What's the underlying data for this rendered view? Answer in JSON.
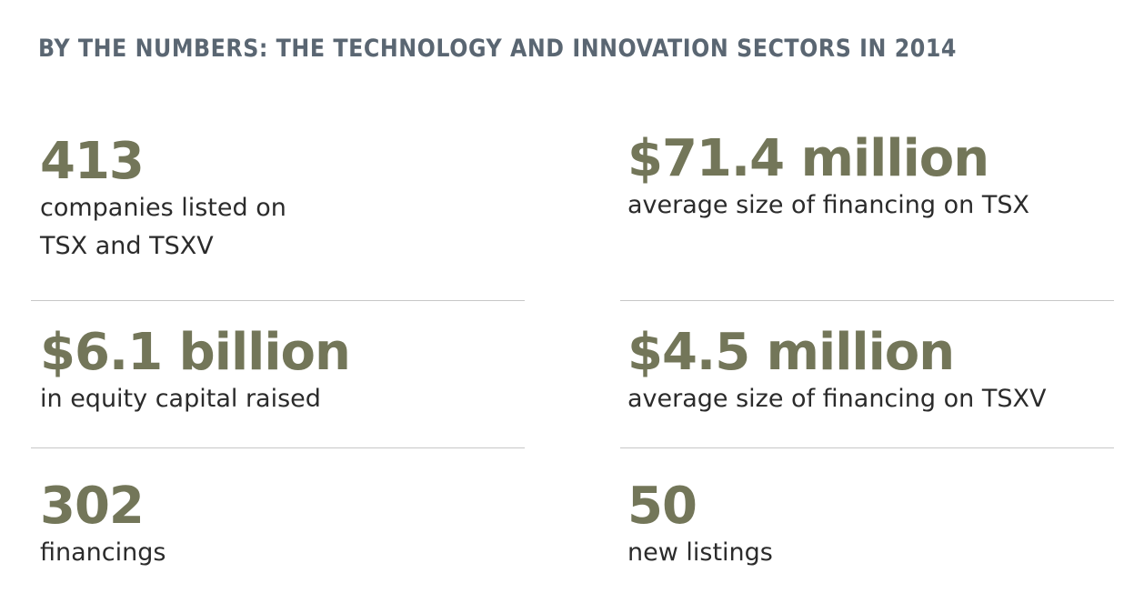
{
  "title": "BY THE NUMBERS: THE TECHNOLOGY AND INNOVATION SECTORS IN 2014",
  "stats": [
    {
      "value": "413",
      "label": "companies listed on TSX and TSXV"
    },
    {
      "value": "$71.4 million",
      "label": "average size of financing on TSX"
    },
    {
      "value": "$6.1 billion",
      "label": "in equity capital raised"
    },
    {
      "value": "$4.5 million",
      "label": "average size of financing on TSXV"
    },
    {
      "value": "302",
      "label": "financings"
    },
    {
      "value": "50",
      "label": "new listings"
    }
  ]
}
